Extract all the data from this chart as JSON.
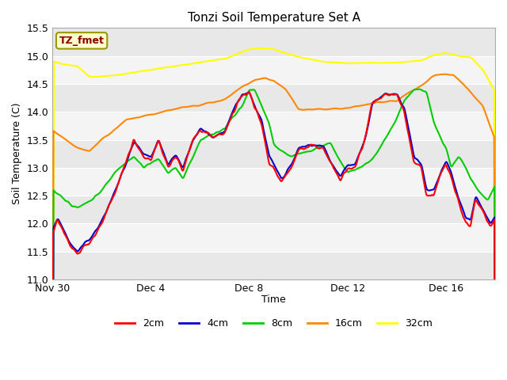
{
  "title": "Tonzi Soil Temperature Set A",
  "xlabel": "Time",
  "ylabel": "Soil Temperature (C)",
  "ylim": [
    11.0,
    15.5
  ],
  "xlim_days": [
    0,
    18
  ],
  "tick_dates": [
    "Nov 30",
    "Dec 4",
    "Dec 8",
    "Dec 12",
    "Dec 16"
  ],
  "tick_offsets": [
    0,
    4,
    8,
    12,
    16
  ],
  "bg_color": "#ffffff",
  "plot_bg_color": "#ffffff",
  "band_color_dark": "#e8e8e8",
  "band_color_light": "#f4f4f4",
  "grid_color": "#ffffff",
  "label_box_color": "#ffffcc",
  "label_box_edge": "#999900",
  "label_text": "TZ_fmet",
  "label_text_color": "#8b0000",
  "series_colors": {
    "2cm": "#ff0000",
    "4cm": "#0000cc",
    "8cm": "#00cc00",
    "16cm": "#ff8800",
    "32cm": "#ffff00"
  },
  "legend_labels": [
    "2cm",
    "4cm",
    "8cm",
    "16cm",
    "32cm"
  ],
  "yticks": [
    11.0,
    11.5,
    12.0,
    12.5,
    13.0,
    13.5,
    14.0,
    14.5,
    15.0,
    15.5
  ],
  "band_edges": [
    11.0,
    11.5,
    12.0,
    12.5,
    13.0,
    13.5,
    14.0,
    14.5,
    15.0,
    15.5
  ]
}
